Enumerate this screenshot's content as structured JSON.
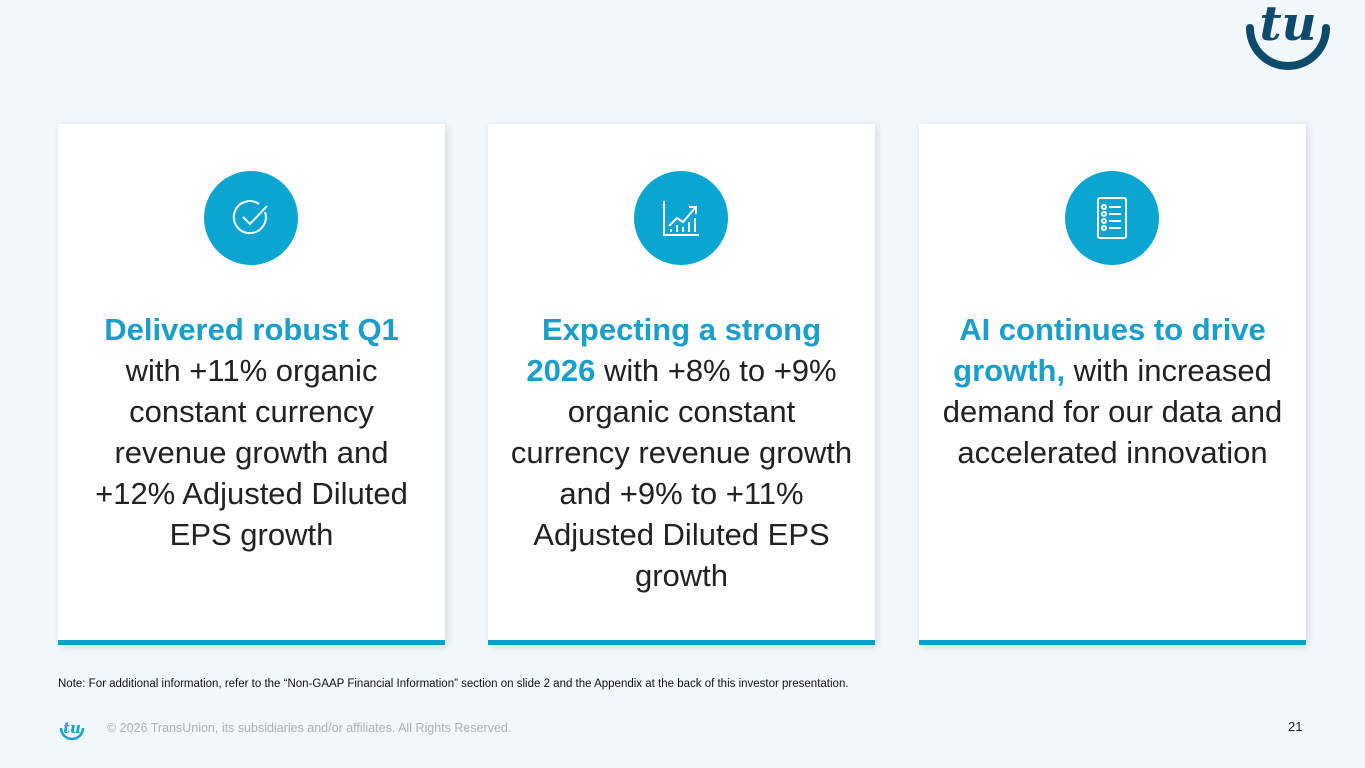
{
  "brand": {
    "logo_text": "tu",
    "accent": "#1a9ecb",
    "dark": "#0d4a6b"
  },
  "cards": [
    {
      "icon": "check-circle-icon",
      "accent": "Delivered robust Q1",
      "body": " with +11% organic constant currency revenue growth and +12% Adjusted Diluted EPS growth"
    },
    {
      "icon": "growth-chart-icon",
      "accent": "Expecting a strong 2026",
      "body": " with +8% to +9% organic constant currency revenue growth and +9% to +11% Adjusted Diluted EPS growth"
    },
    {
      "icon": "checklist-icon",
      "accent": "AI continues to drive growth,",
      "body": " with increased demand for our data and accelerated innovation"
    }
  ],
  "note": "Note: For additional information, refer to the “Non-GAAP Financial Information” section on slide 2 and the Appendix at the back of this investor presentation.",
  "footer": {
    "copyright": "© 2026 TransUnion, its subsidiaries and/or affiliates. All Rights Reserved.",
    "page_number": "21"
  }
}
